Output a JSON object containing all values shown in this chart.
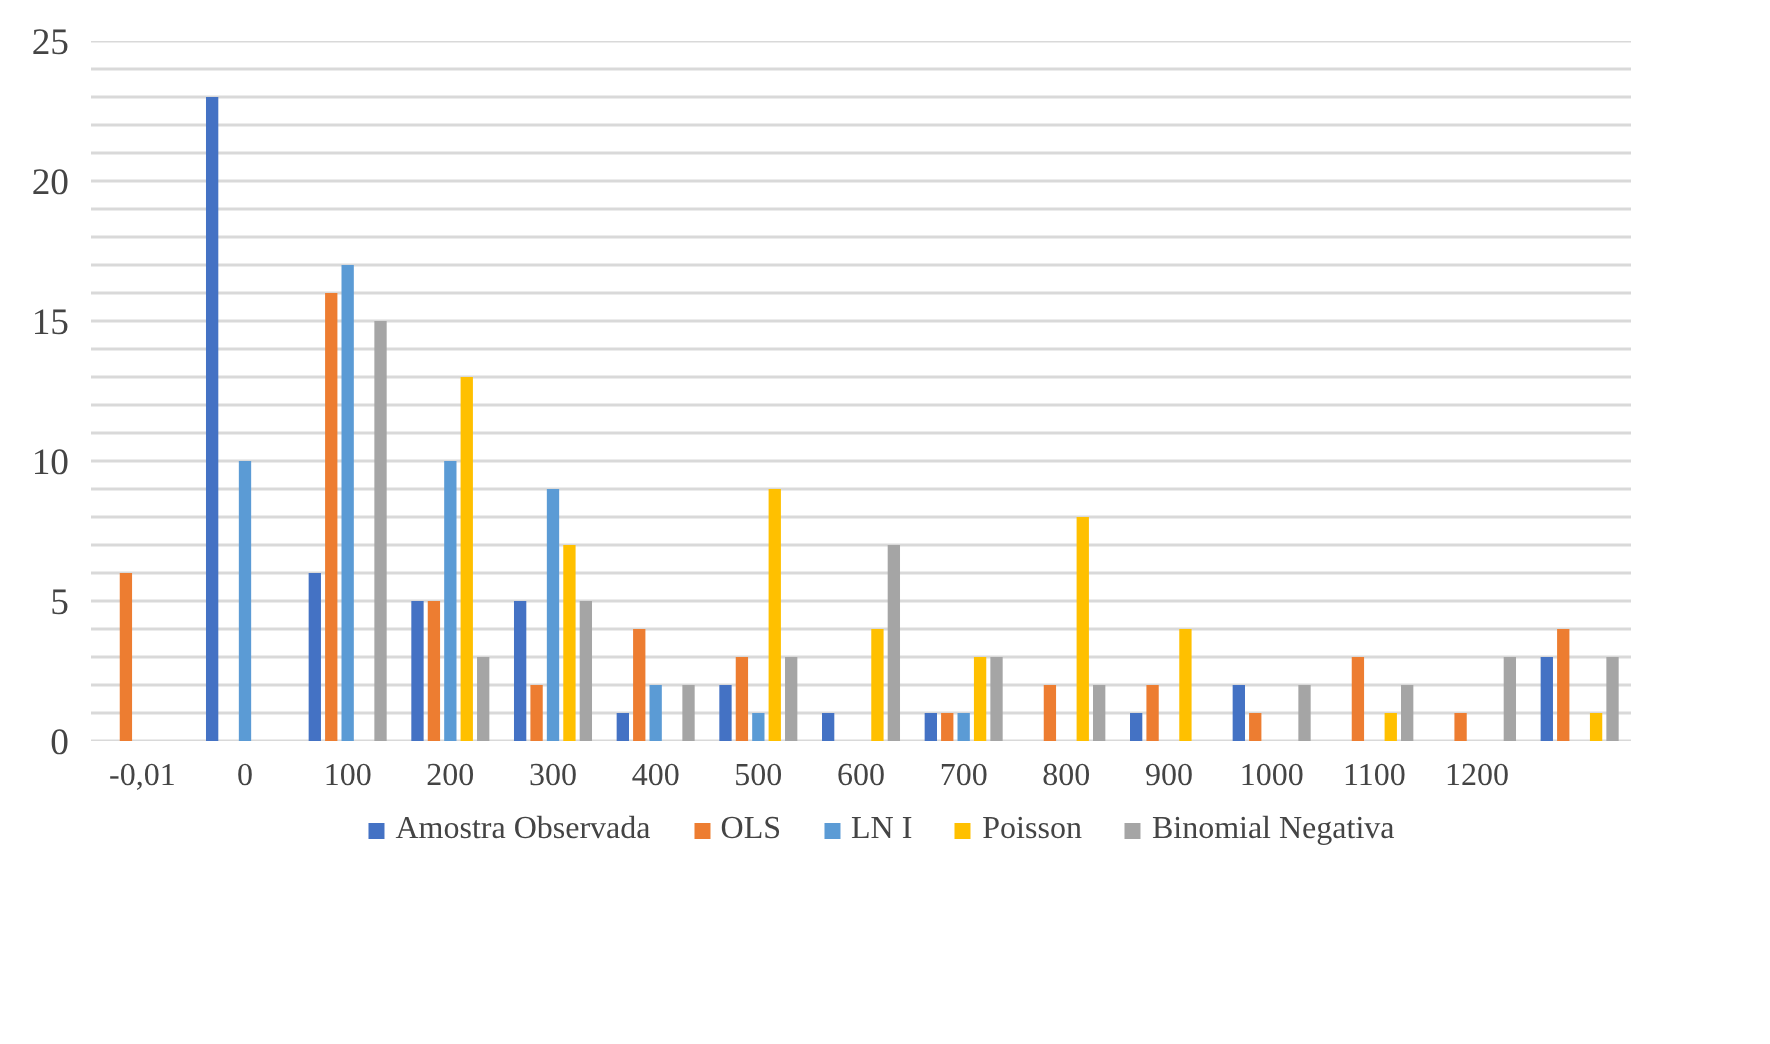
{
  "chart_data": {
    "type": "bar",
    "categories": [
      "-0,01",
      "0",
      "100",
      "200",
      "300",
      "400",
      "500",
      "600",
      "700",
      "800",
      "900",
      "1000",
      "1100",
      "1200",
      null
    ],
    "series": [
      {
        "name": "Amostra Observada",
        "color": "#4472c4",
        "values": [
          0,
          23,
          6,
          5,
          5,
          1,
          2,
          1,
          1,
          0,
          1,
          2,
          0,
          0,
          3
        ]
      },
      {
        "name": "OLS",
        "color": "#ed7d31",
        "values": [
          6,
          0,
          16,
          5,
          2,
          4,
          3,
          0,
          1,
          2,
          2,
          1,
          3,
          1,
          4
        ]
      },
      {
        "name": "LN I",
        "color": "#5b9bd5",
        "values": [
          0,
          10,
          17,
          10,
          9,
          2,
          1,
          0,
          1,
          0,
          0,
          0,
          0,
          0,
          0
        ]
      },
      {
        "name": "Poisson",
        "color": "#ffc000",
        "values": [
          0,
          0,
          0,
          13,
          7,
          0,
          9,
          4,
          3,
          8,
          4,
          0,
          1,
          0,
          1
        ]
      },
      {
        "name": "Binomial Negativa",
        "color": "#a5a5a5",
        "values": [
          0,
          0,
          15,
          3,
          5,
          2,
          3,
          7,
          3,
          2,
          0,
          2,
          2,
          3,
          3
        ]
      }
    ],
    "ylim": [
      0,
      25
    ],
    "yticks": [
      0,
      {
        "value": 1,
        "label": null
      },
      {
        "value": 2,
        "label": null
      },
      {
        "value": 3,
        "label": null
      },
      {
        "value": 4,
        "label": null
      },
      5,
      {
        "value": 6,
        "label": null
      },
      {
        "value": 7,
        "label": null
      },
      {
        "value": 8,
        "label": null
      },
      {
        "value": 9,
        "label": null
      },
      10,
      {
        "value": 11,
        "label": null
      },
      {
        "value": 12,
        "label": null
      },
      {
        "value": 13,
        "label": null
      },
      {
        "value": 14,
        "label": null
      },
      15,
      {
        "value": 16,
        "label": null
      },
      {
        "value": 17,
        "label": null
      },
      {
        "value": 18,
        "label": null
      },
      {
        "value": 19,
        "label": null
      },
      20,
      {
        "value": 21,
        "label": null
      },
      {
        "value": 22,
        "label": null
      },
      {
        "value": 23,
        "label": null
      },
      {
        "value": 24,
        "label": null
      },
      25
    ],
    "grid": "y",
    "legend": "bottom"
  }
}
